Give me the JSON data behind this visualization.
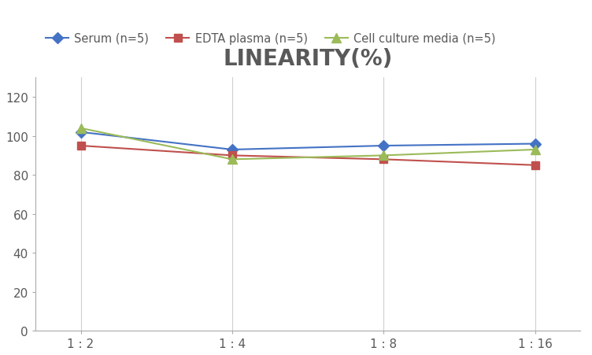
{
  "title": "LINEARITY(%)",
  "x_labels": [
    "1 : 2",
    "1 : 4",
    "1 : 8",
    "1 : 16"
  ],
  "x_positions": [
    0,
    1,
    2,
    3
  ],
  "series": [
    {
      "label": "Serum (n=5)",
      "values": [
        102,
        93,
        95,
        96
      ],
      "color": "#4472C4",
      "marker": "D",
      "linewidth": 1.5,
      "markersize": 7
    },
    {
      "label": "EDTA plasma (n=5)",
      "values": [
        95,
        90,
        88,
        85
      ],
      "color": "#C0504D",
      "marker": "s",
      "linewidth": 1.5,
      "markersize": 7
    },
    {
      "label": "Cell culture media (n=5)",
      "values": [
        104,
        88,
        90,
        93
      ],
      "color": "#9BBB59",
      "marker": "^",
      "linewidth": 1.5,
      "markersize": 8
    }
  ],
  "ylim": [
    0,
    130
  ],
  "yticks": [
    0,
    20,
    40,
    60,
    80,
    100,
    120
  ],
  "background_color": "#FFFFFF",
  "grid_color": "#D0D0D0",
  "title_fontsize": 20,
  "legend_fontsize": 10.5,
  "tick_fontsize": 11,
  "title_color": "#595959"
}
